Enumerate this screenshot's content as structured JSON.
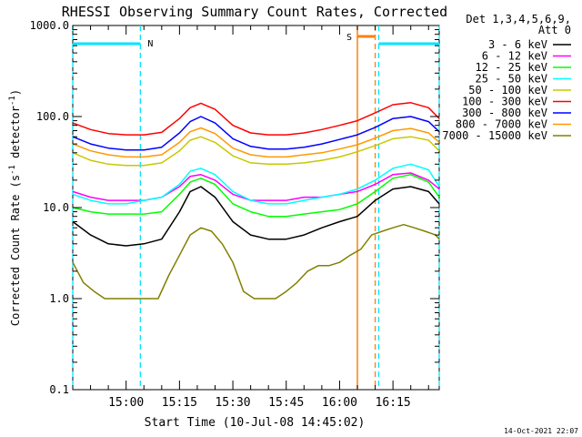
{
  "chart_data": {
    "type": "line",
    "title": "RHESSI Observing Summary Count Rates, Corrected",
    "xlabel": "Start Time (10-Jul-08 14:45:02)",
    "ylabel_main": "Corrected Count Rate (s",
    "ylabel_sup1": "-1",
    "ylabel_mid": " detector",
    "ylabel_sup2": "-1",
    "ylabel_end": ")",
    "yscale": "log",
    "ylim": [
      0.1,
      1000
    ],
    "xlim_minutes": [
      0,
      103
    ],
    "x_ticks": [
      {
        "label": "15:00",
        "minute": 15
      },
      {
        "label": "15:15",
        "minute": 30
      },
      {
        "label": "15:30",
        "minute": 45
      },
      {
        "label": "15:45",
        "minute": 60
      },
      {
        "label": "16:00",
        "minute": 75
      },
      {
        "label": "16:15",
        "minute": 90
      }
    ],
    "y_ticks": [
      {
        "label": "0.1",
        "value": 0.1
      },
      {
        "label": "1.0",
        "value": 1
      },
      {
        "label": "10.0",
        "value": 10
      },
      {
        "label": "100.0",
        "value": 100
      },
      {
        "label": "1000.0",
        "value": 1000
      }
    ],
    "legend_header": [
      "Det 1,3,4,5,6,9,",
      "Att 0"
    ],
    "series": [
      {
        "name": "3 - 6 keV",
        "color": "#000000",
        "x": [
          0,
          5,
          10,
          15,
          20,
          25,
          30,
          33,
          36,
          40,
          45,
          50,
          55,
          60,
          65,
          70,
          75,
          80,
          85,
          90,
          95,
          100,
          103
        ],
        "y": [
          7,
          5,
          4,
          3.8,
          4,
          4.5,
          9,
          15,
          17,
          13,
          7,
          5,
          4.5,
          4.5,
          5,
          6,
          7,
          8,
          12,
          16,
          17,
          15,
          11
        ]
      },
      {
        "name": "6 - 12 keV",
        "color": "#ff00ff",
        "x": [
          0,
          5,
          10,
          15,
          20,
          25,
          30,
          33,
          36,
          40,
          45,
          50,
          55,
          60,
          65,
          70,
          75,
          80,
          85,
          90,
          95,
          100,
          103
        ],
        "y": [
          15,
          13,
          12,
          12,
          12,
          13,
          17,
          22,
          23,
          20,
          14,
          12,
          12,
          12,
          13,
          13,
          14,
          15,
          18,
          23,
          24,
          20,
          16
        ]
      },
      {
        "name": "12 - 25 keV",
        "color": "#00ff00",
        "x": [
          0,
          5,
          10,
          15,
          20,
          25,
          30,
          33,
          36,
          40,
          45,
          50,
          55,
          60,
          65,
          70,
          75,
          80,
          85,
          90,
          95,
          100,
          103
        ],
        "y": [
          10,
          9,
          8.5,
          8.5,
          8.5,
          9,
          14,
          19,
          21,
          18,
          11,
          9,
          8,
          8,
          8.5,
          9,
          9.5,
          11,
          15,
          21,
          23,
          19,
          13
        ]
      },
      {
        "name": "25 - 50 keV",
        "color": "#00ffff",
        "x": [
          0,
          5,
          10,
          15,
          20,
          25,
          30,
          33,
          36,
          40,
          45,
          50,
          55,
          60,
          65,
          70,
          75,
          80,
          85,
          90,
          95,
          100,
          103
        ],
        "y": [
          14,
          12,
          11,
          11,
          12,
          13,
          18,
          25,
          27,
          23,
          15,
          12,
          11,
          11,
          12,
          13,
          14,
          16,
          20,
          27,
          30,
          26,
          17
        ]
      },
      {
        "name": "50 - 100 keV",
        "color": "#c8c800",
        "x": [
          0,
          5,
          10,
          15,
          20,
          25,
          30,
          33,
          36,
          40,
          45,
          50,
          55,
          60,
          65,
          70,
          75,
          80,
          85,
          90,
          95,
          100,
          103
        ],
        "y": [
          40,
          33,
          30,
          29,
          29,
          31,
          42,
          55,
          60,
          52,
          37,
          31,
          30,
          30,
          31,
          33,
          36,
          41,
          48,
          57,
          60,
          55,
          42
        ]
      },
      {
        "name": "100 - 300 keV",
        "color": "#ff0000",
        "x": [
          0,
          5,
          10,
          15,
          20,
          25,
          30,
          33,
          36,
          40,
          45,
          50,
          55,
          60,
          65,
          70,
          75,
          80,
          85,
          90,
          95,
          100,
          103
        ],
        "y": [
          85,
          72,
          65,
          63,
          63,
          67,
          95,
          125,
          140,
          120,
          80,
          66,
          63,
          63,
          66,
          72,
          80,
          90,
          110,
          135,
          142,
          125,
          95
        ]
      },
      {
        "name": "300 - 800 keV",
        "color": "#0000ff",
        "x": [
          0,
          5,
          10,
          15,
          20,
          25,
          30,
          33,
          36,
          40,
          45,
          50,
          55,
          60,
          65,
          70,
          75,
          80,
          85,
          90,
          95,
          100,
          103
        ],
        "y": [
          60,
          50,
          45,
          43,
          43,
          46,
          66,
          88,
          100,
          85,
          57,
          47,
          44,
          44,
          46,
          50,
          56,
          63,
          76,
          95,
          100,
          88,
          68
        ]
      },
      {
        "name": "800 - 7000 keV",
        "color": "#ff9900",
        "x": [
          0,
          5,
          10,
          15,
          20,
          25,
          30,
          33,
          36,
          40,
          45,
          50,
          55,
          60,
          65,
          70,
          75,
          80,
          85,
          90,
          95,
          100,
          103
        ],
        "y": [
          50,
          42,
          38,
          36,
          36,
          38,
          52,
          68,
          75,
          65,
          45,
          38,
          36,
          36,
          38,
          40,
          44,
          49,
          58,
          70,
          74,
          66,
          52
        ]
      },
      {
        "name": "7000 - 15000 keV",
        "color": "#808000",
        "x": [
          0,
          3,
          6,
          9,
          12,
          15,
          18,
          21,
          24,
          27,
          30,
          33,
          36,
          39,
          42,
          45,
          48,
          51,
          54,
          57,
          60,
          63,
          66,
          69,
          72,
          75,
          78,
          81,
          84,
          87,
          90,
          93,
          96,
          99,
          102,
          103
        ],
        "y": [
          2.5,
          1.5,
          1.2,
          1.0,
          1.0,
          1.0,
          1.0,
          1.0,
          1.0,
          1.8,
          3,
          5,
          6,
          5.5,
          4,
          2.5,
          1.2,
          1.0,
          1.0,
          1.0,
          1.2,
          1.5,
          2,
          2.3,
          2.3,
          2.5,
          3,
          3.5,
          5,
          5.5,
          6,
          6.5,
          6,
          5.5,
          5,
          4.5
        ]
      }
    ],
    "annotations": {
      "night_label": "N",
      "saa_label": "S",
      "night_bars": [
        [
          0,
          19
        ],
        [
          86,
          103
        ]
      ],
      "night_boundaries": [
        0,
        19,
        86,
        103
      ],
      "saa_bar": [
        80,
        85
      ],
      "saa_boundaries": [
        80,
        85
      ],
      "night_color": "#00e5ff",
      "saa_color": "#ff8000"
    }
  },
  "footer": {
    "timestamp": "14-Oct-2021 22:07"
  }
}
